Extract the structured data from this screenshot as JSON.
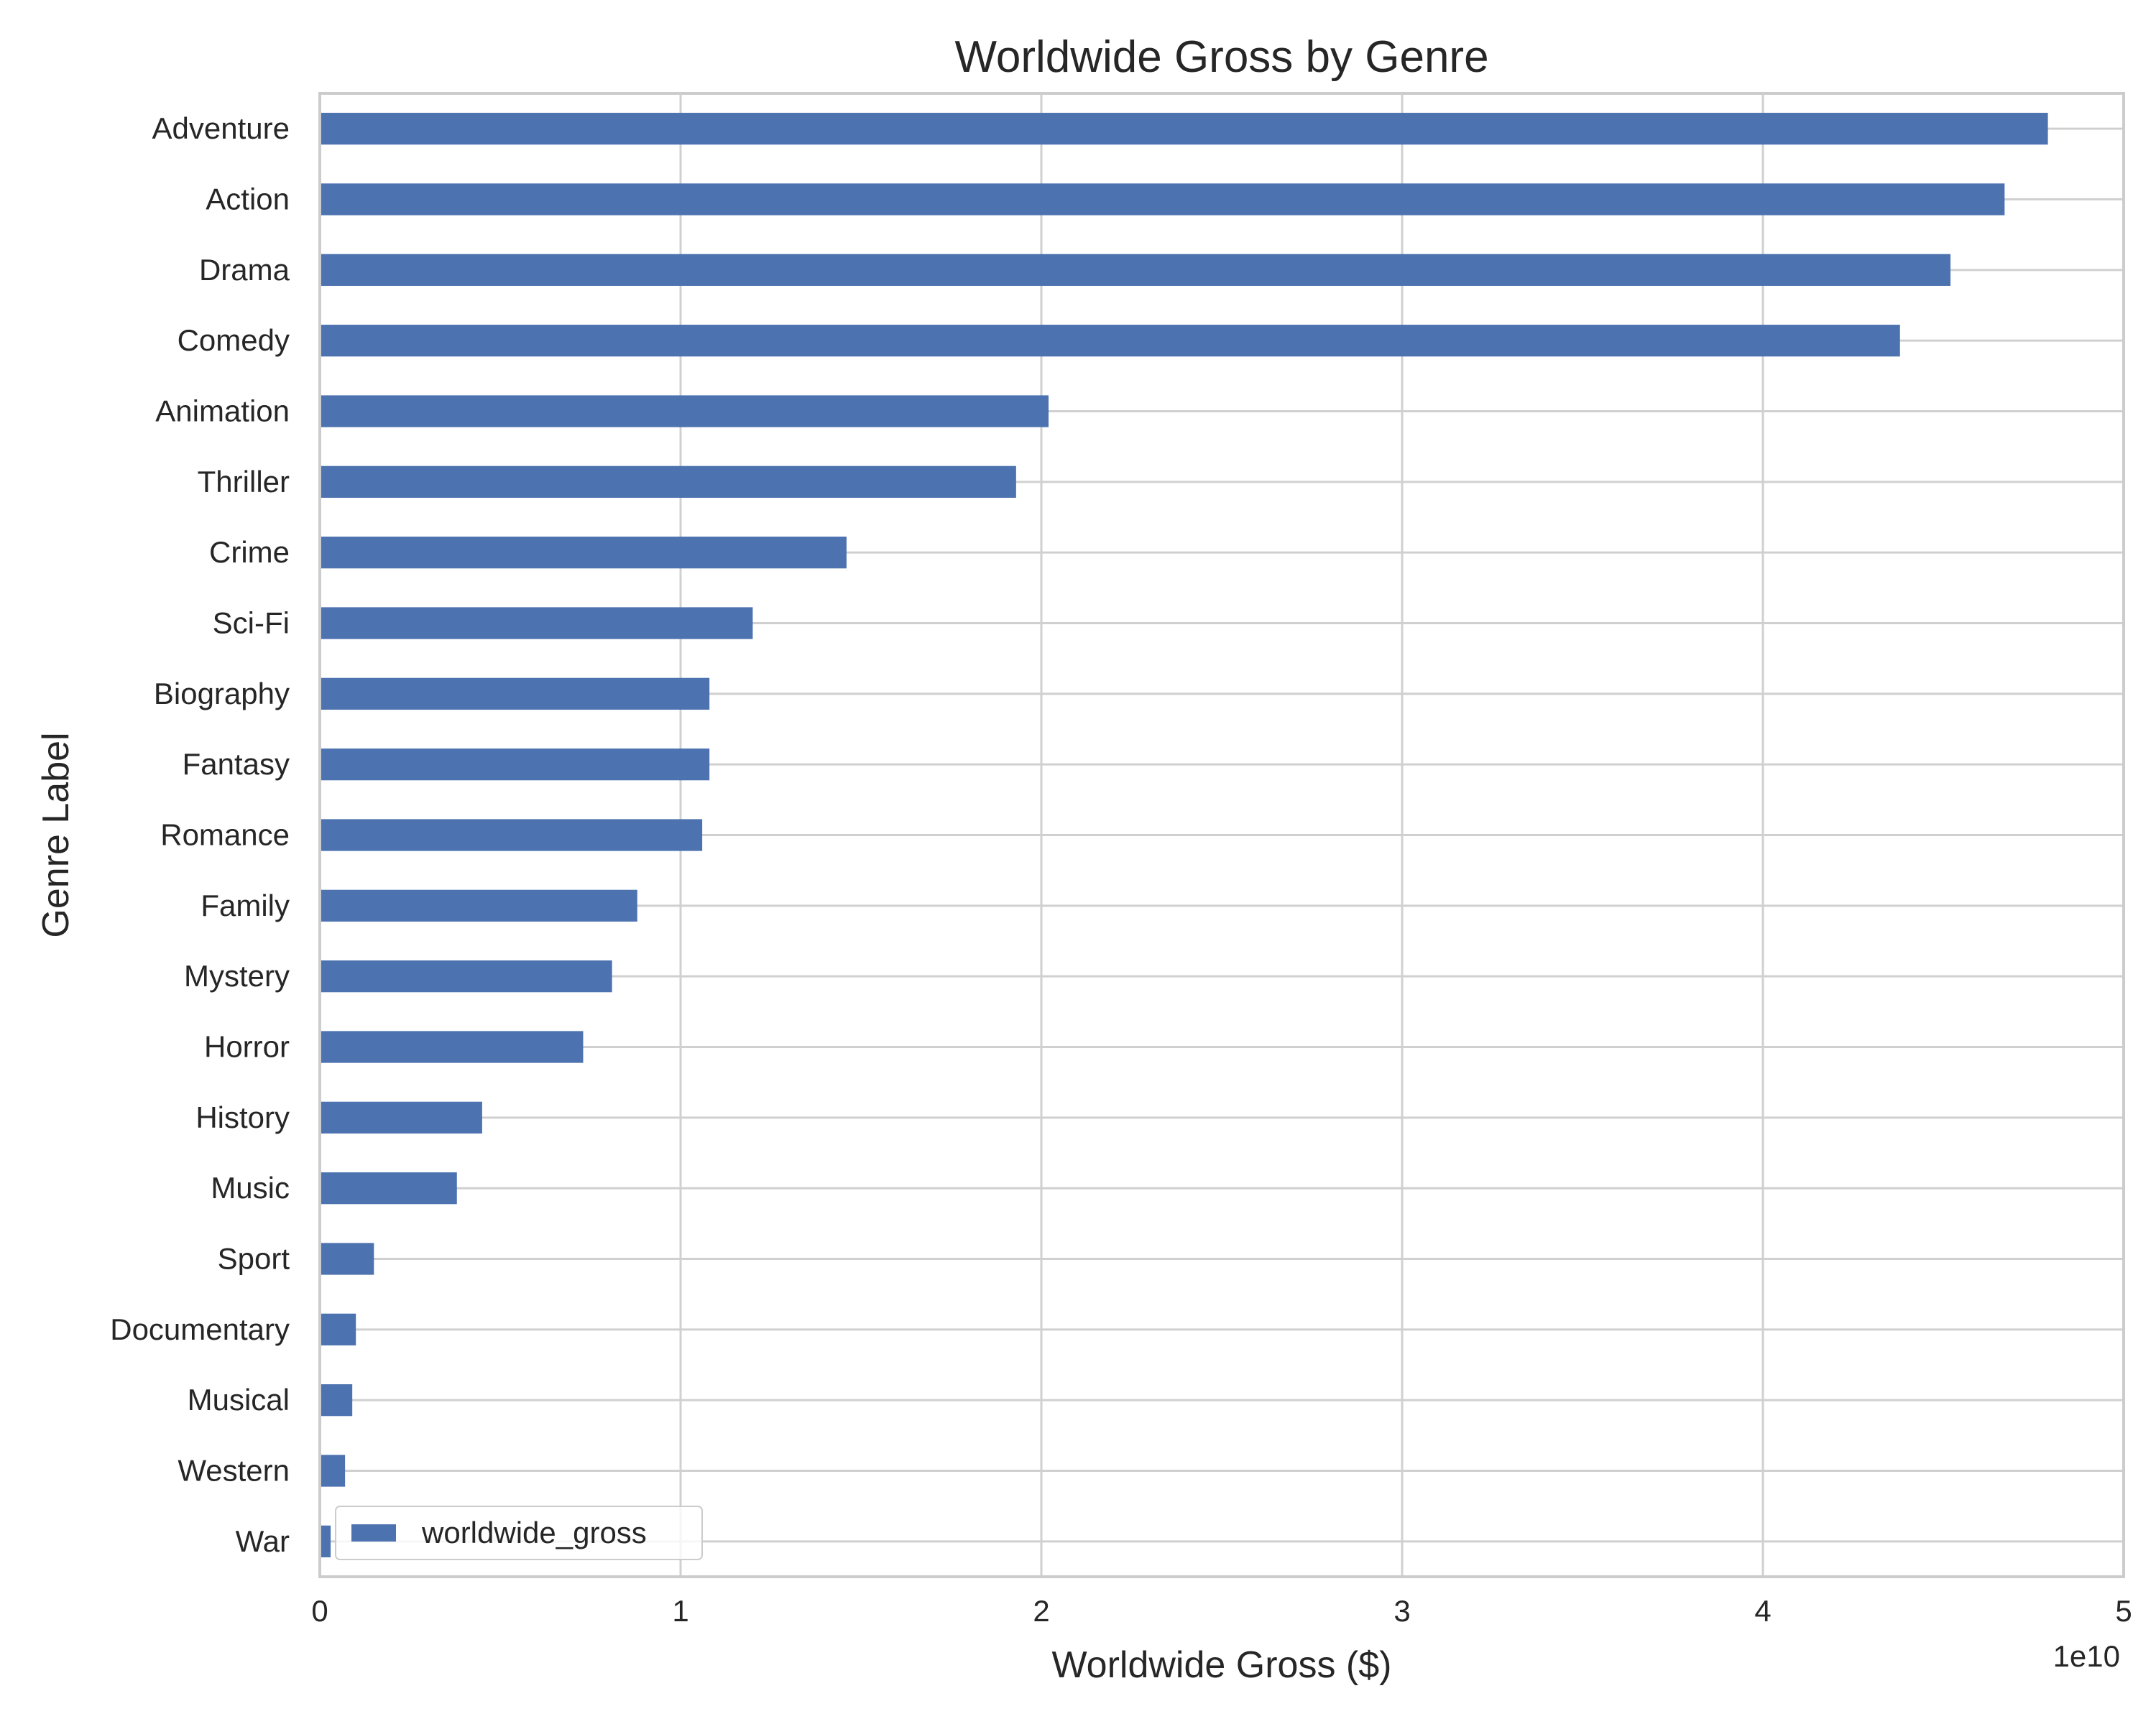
{
  "chart_data": {
    "type": "bar",
    "orientation": "horizontal",
    "title": "Worldwide Gross by Genre",
    "xlabel": "Worldwide Gross ($)",
    "ylabel": "Genre Label",
    "x_scale_note": "1e10",
    "xlim": [
      0,
      5.0
    ],
    "x_ticks": [
      "0",
      "1",
      "2",
      "3",
      "4",
      "5"
    ],
    "categories": [
      "Adventure",
      "Action",
      "Drama",
      "Comedy",
      "Animation",
      "Thriller",
      "Crime",
      "Sci-Fi",
      "Biography",
      "Fantasy",
      "Romance",
      "Family",
      "Mystery",
      "Horror",
      "History",
      "Music",
      "Sport",
      "Documentary",
      "Musical",
      "Western",
      "War"
    ],
    "series": [
      {
        "name": "worldwide_gross",
        "color": "#4c72b0",
        "values": [
          4.79,
          4.67,
          4.52,
          4.38,
          2.02,
          1.93,
          1.46,
          1.2,
          1.08,
          1.08,
          1.06,
          0.88,
          0.81,
          0.73,
          0.45,
          0.38,
          0.15,
          0.1,
          0.09,
          0.07,
          0.03
        ]
      }
    ],
    "grid": true,
    "legend": {
      "position": "lower-left",
      "entries": [
        "worldwide_gross"
      ]
    },
    "colors": {
      "bar": "#4c72b0",
      "grid": "#d0d0d0",
      "frame": "#cccccc",
      "text": "#262626"
    }
  }
}
